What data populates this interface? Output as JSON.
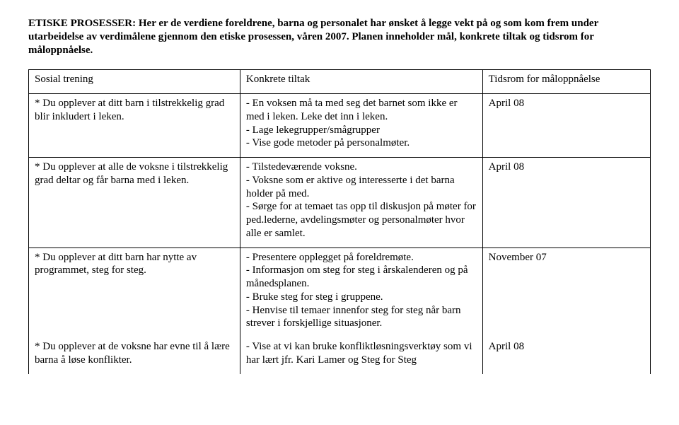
{
  "intro": "ETISKE PROSESSER: Her er de verdiene foreldrene, barna og personalet har ønsket å legge vekt på og som kom frem under utarbeidelse av verdimålene gjennom den etiske prosessen, våren 2007. Planen inneholder mål, konkrete tiltak og tidsrom for måloppnåelse.",
  "header": {
    "col1": "Sosial trening",
    "col2": "Konkrete tiltak",
    "col3": "Tidsrom for måloppnåelse"
  },
  "rows": [
    {
      "col1": "* Du opplever at ditt barn i tilstrekkelig grad blir inkludert i leken.",
      "col2": "- En voksen må ta med seg det barnet som ikke er med i leken. Leke det inn i leken.\n- Lage lekegrupper/smågrupper\n- Vise gode metoder på personalmøter.",
      "col3": "April 08"
    },
    {
      "col1": "* Du opplever at alle de voksne i tilstrekkelig grad deltar og får barna med i leken.",
      "col2": "- Tilstedeværende voksne.\n- Voksne som er aktive og interesserte i det barna holder på med.\n- Sørge for at temaet tas opp til diskusjon på møter for ped.lederne, avdelingsmøter og personalmøter hvor alle er samlet.",
      "col3": "April 08"
    },
    {
      "col1": "* Du opplever at ditt barn har nytte av programmet, steg for steg.",
      "col2": "- Presentere opplegget på foreldremøte.\n- Informasjon om steg for steg i årskalenderen og på månedsplanen.\n- Bruke steg for steg i gruppene.\n- Henvise til temaer innenfor steg for steg når barn strever i forskjellige situasjoner.",
      "col3": "November 07"
    },
    {
      "col1": "* Du opplever at de voksne har evne til å lære barna å løse konflikter.",
      "col2": "- Vise at vi kan bruke konfliktløsningsverktøy som vi har lært jfr. Kari Lamer og Steg for Steg",
      "col3": "April 08"
    }
  ]
}
